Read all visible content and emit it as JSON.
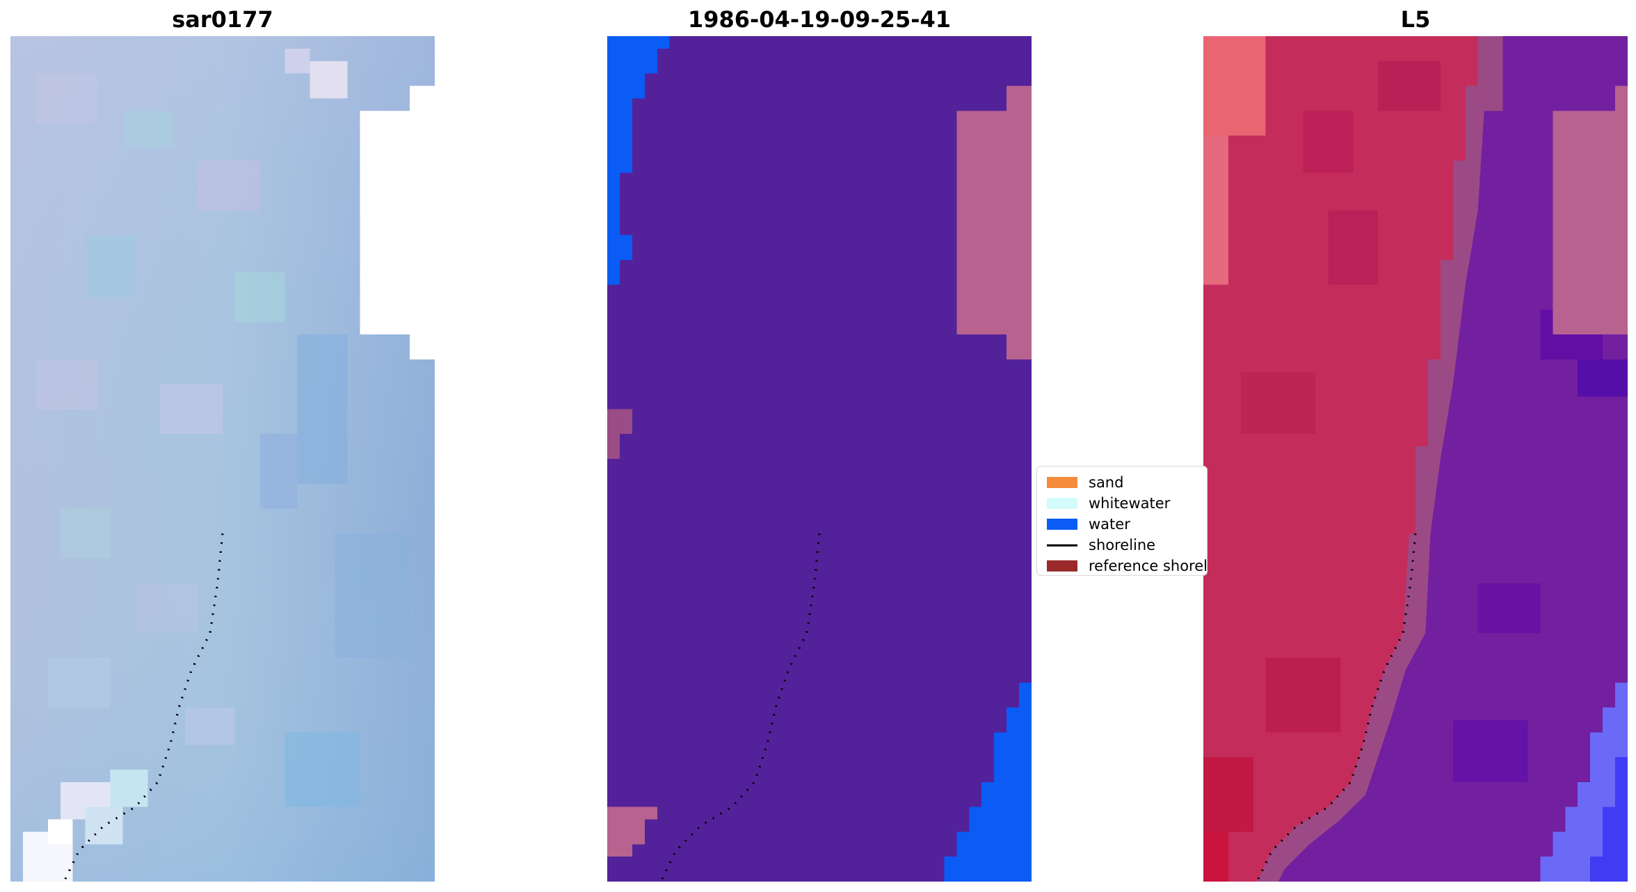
{
  "panels": [
    {
      "title": "sar0177"
    },
    {
      "title": "1986-04-19-09-25-41"
    },
    {
      "title": "L5"
    }
  ],
  "legend": {
    "items": [
      {
        "label": "sand",
        "color": "#f58b3c",
        "kind": "patch"
      },
      {
        "label": "whitewater",
        "color": "#d4fbfb",
        "kind": "patch"
      },
      {
        "label": "water",
        "color": "#0a5cf5",
        "kind": "patch"
      },
      {
        "label": "shoreline",
        "color": "#000000",
        "kind": "line"
      },
      {
        "label": "reference shoreline",
        "color": "#9a2a2a",
        "kind": "patch"
      }
    ]
  },
  "colors": {
    "classified_background": "#53229a",
    "classified_water": "#0a5cf5",
    "classified_nodata": "#b8638f",
    "rgb_panel_tone": "#9fb8da",
    "false_color_land": "#c42c5c",
    "false_color_sea": "#7220a0"
  }
}
